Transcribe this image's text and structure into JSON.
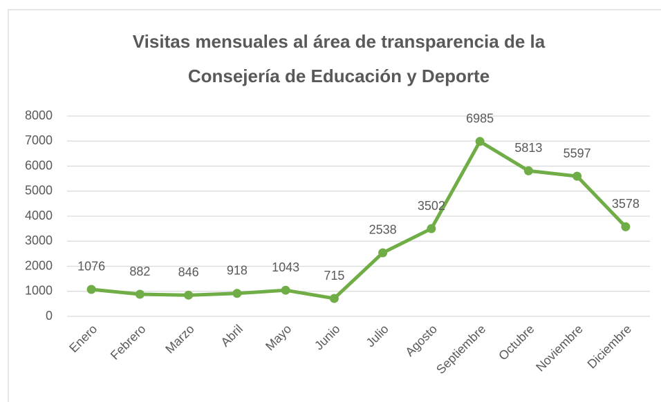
{
  "chart_data": {
    "type": "line",
    "title": [
      "Visitas mensuales al área de transparencia de la",
      "Consejería de Educación y Deporte"
    ],
    "categories": [
      "Enero",
      "Febrero",
      "Marzo",
      "Abril",
      "Mayo",
      "Junio",
      "Julio",
      "Agosto",
      "Septiembre",
      "Octubre",
      "Noviembre",
      "Diciembre"
    ],
    "series": [
      {
        "color": "#70ad47",
        "values": [
          1076,
          882,
          846,
          918,
          1043,
          715,
          2538,
          3502,
          6985,
          5813,
          5597,
          3578
        ]
      }
    ],
    "ylim": [
      0,
      8000
    ],
    "yticks": [
      0,
      1000,
      2000,
      3000,
      4000,
      5000,
      6000,
      7000,
      8000
    ],
    "grid": true
  }
}
